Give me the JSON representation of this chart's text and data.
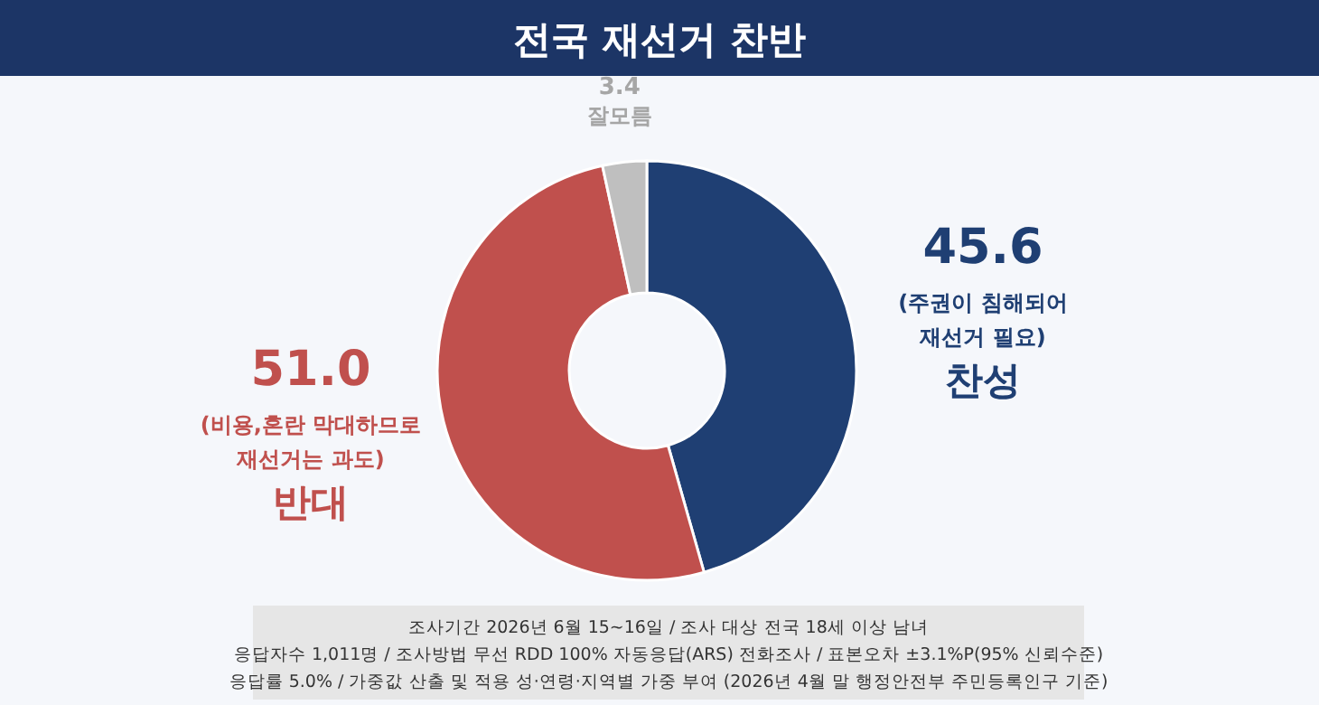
{
  "chart_data": {
    "type": "donut",
    "title": "전국 재선거 찬반",
    "categories": [
      "찬성",
      "반대",
      "잘모름"
    ],
    "values": [
      45.6,
      51.0,
      3.4
    ],
    "value_labels": [
      "45.6",
      "51.0",
      "3.4"
    ],
    "colors": [
      "#1f3f73",
      "#c0504d",
      "#bfbfbf"
    ],
    "annotations": [
      "(주권이 침해되어\n재선거 필요)",
      "(비용,혼란 막대하므로\n재선거는 과도)",
      "조사기간 2026년 6월 15~16일 / 조사 대상 전국 18세 이상 남녀",
      "응답자수 1,011명 / 조사방법 무선 RDD 100% 자동응답(ARS) 전화조사 / 표본오차 ±3.1%P(95% 신뢰수준)",
      "응답률 5.0% / 가중값 산출 및 적용 성·연령·지역별 가중 부여 (2026년 4월 말 행정안전부 주민등록인구 기준)"
    ]
  }
}
